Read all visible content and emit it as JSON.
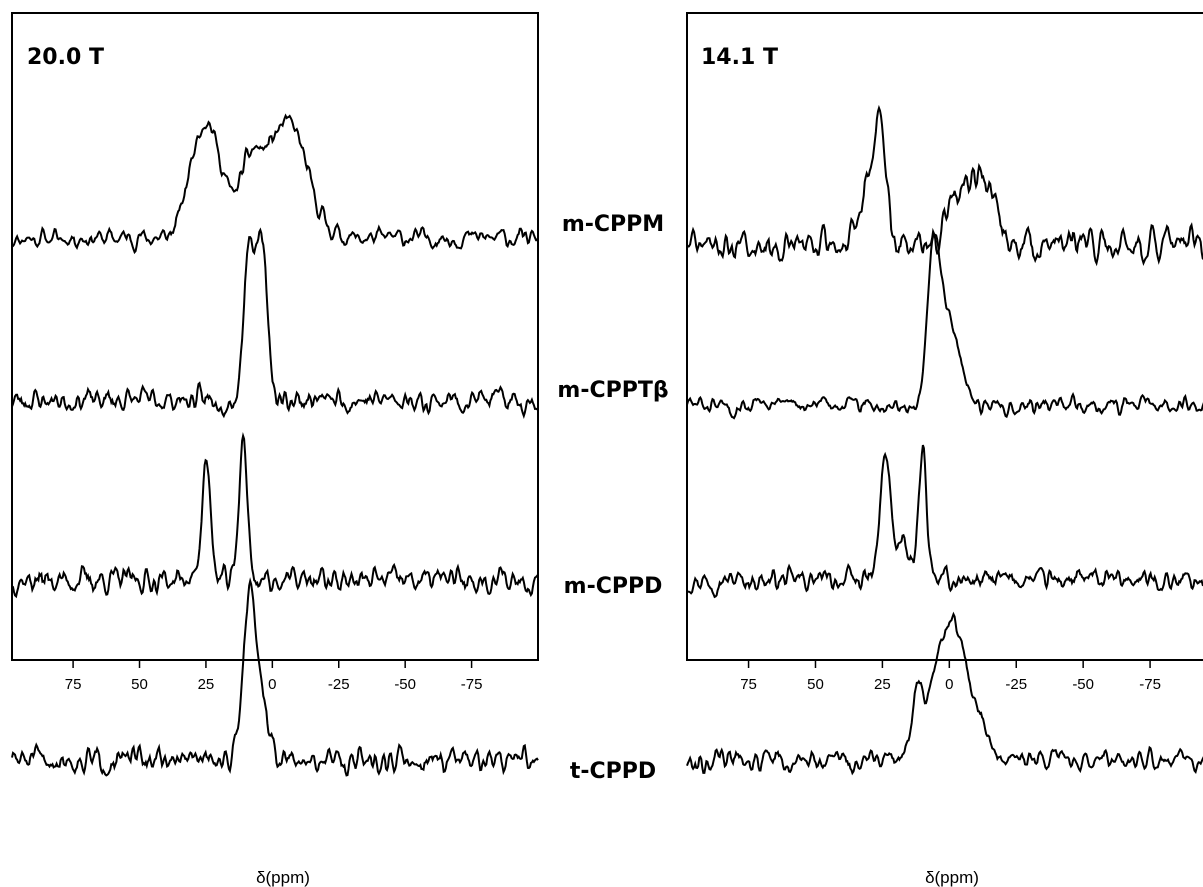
{
  "chart_data": {
    "type": "line",
    "sample_labels": [
      "m-CPPM",
      "m-CPPTβ",
      "m-CPPD",
      "t-CPPD"
    ],
    "panels": [
      {
        "title": "20.0 T",
        "xlabel": "δ(ppm)",
        "xlim": [
          98,
          -100
        ],
        "xticks": [
          75,
          50,
          25,
          0,
          -25,
          -50,
          -75
        ],
        "xtick_labels": [
          "75",
          "50",
          "25",
          "0",
          "-25",
          "-50",
          "-75"
        ],
        "series": [
          {
            "name": "m-CPPM",
            "baseline": 0.0,
            "peaks": [
              [
                25,
                0.6,
                4.0
              ],
              [
                31,
                0.22,
                3.5
              ],
              [
                19,
                0.2,
                3.5
              ],
              [
                8,
                0.47,
                4.5
              ],
              [
                -2,
                0.5,
                4.5
              ],
              [
                -9,
                0.4,
                4.0
              ],
              [
                -15,
                0.15,
                5.0
              ]
            ],
            "noise": 0.045,
            "seed": 11
          },
          {
            "name": "m-CPPTβ",
            "baseline": 0.0,
            "peaks": [
              [
                9,
                0.9,
                1.8
              ],
              [
                5,
                0.72,
                1.8
              ],
              [
                2.5,
                0.45,
                1.6
              ]
            ],
            "noise": 0.055,
            "seed": 23
          },
          {
            "name": "m-CPPD",
            "baseline": 0.0,
            "peaks": [
              [
                25,
                0.72,
                1.6
              ],
              [
                11,
                0.86,
                1.5
              ]
            ],
            "noise": 0.06,
            "seed": 37
          },
          {
            "name": "t-CPPD",
            "baseline": 0.0,
            "peaks": [
              [
                8,
                0.92,
                1.7
              ],
              [
                11,
                0.4,
                1.8
              ],
              [
                4,
                0.4,
                2.2
              ]
            ],
            "noise": 0.06,
            "seed": 51
          }
        ]
      },
      {
        "title": "14.1 T",
        "xlabel": "δ(ppm)",
        "xlim": [
          98,
          -100
        ],
        "xticks": [
          75,
          50,
          25,
          0,
          -25,
          -50,
          -75
        ],
        "xtick_labels": [
          "75",
          "50",
          "25",
          "0",
          "-25",
          "-50",
          "-75"
        ],
        "series": [
          {
            "name": "m-CPPM",
            "baseline": 0.0,
            "peaks": [
              [
                26,
                0.7,
                2.3
              ],
              [
                31,
                0.3,
                2.5
              ],
              [
                -2,
                0.22,
                3.5
              ],
              [
                -8,
                0.3,
                4.0
              ],
              [
                -14,
                0.28,
                3.5
              ]
            ],
            "noise": 0.075,
            "seed": 71
          },
          {
            "name": "m-CPPTβ",
            "baseline": 0.0,
            "peaks": [
              [
                6,
                0.92,
                2.2
              ],
              [
                1,
                0.5,
                3.0
              ],
              [
                -4,
                0.18,
                2.5
              ]
            ],
            "noise": 0.04,
            "seed": 83
          },
          {
            "name": "m-CPPD",
            "baseline": 0.0,
            "peaks": [
              [
                24,
                0.7,
                1.9
              ],
              [
                10,
                0.8,
                1.4
              ],
              [
                18,
                0.2,
                3.0
              ]
            ],
            "noise": 0.05,
            "seed": 97
          },
          {
            "name": "t-CPPD",
            "baseline": 0.0,
            "peaks": [
              [
                12,
                0.35,
                2.0
              ],
              [
                3,
                0.62,
                4.5
              ],
              [
                -4,
                0.52,
                4.0
              ],
              [
                -12,
                0.18,
                3.0
              ]
            ],
            "noise": 0.05,
            "seed": 113
          }
        ]
      }
    ]
  }
}
